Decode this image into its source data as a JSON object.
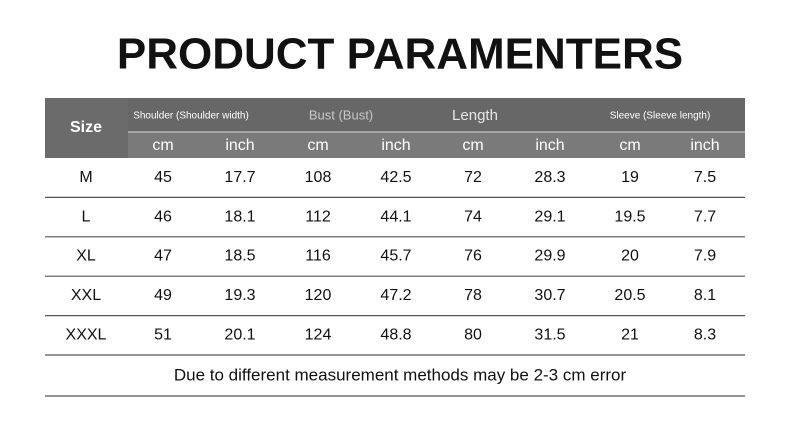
{
  "title": "PRODUCT PARAMENTERS",
  "table": {
    "size_header": "Size",
    "groups": [
      "Shoulder (Shoulder width)",
      "Bust (Bust)",
      "Length",
      "Sleeve (Sleeve length)"
    ],
    "units": [
      "cm",
      "inch",
      "cm",
      "inch",
      "cm",
      "inch",
      "cm",
      "inch"
    ],
    "rows": [
      [
        "M",
        "45",
        "17.7",
        "108",
        "42.5",
        "72",
        "28.3",
        "19",
        "7.5"
      ],
      [
        "L",
        "46",
        "18.1",
        "112",
        "44.1",
        "74",
        "29.1",
        "19.5",
        "7.7"
      ],
      [
        "XL",
        "47",
        "18.5",
        "116",
        "45.7",
        "76",
        "29.9",
        "20",
        "7.9"
      ],
      [
        "XXL",
        "49",
        "19.3",
        "120",
        "47.2",
        "78",
        "30.7",
        "20.5",
        "8.1"
      ],
      [
        "XXXL",
        "51",
        "20.1",
        "124",
        "48.8",
        "80",
        "31.5",
        "21",
        "8.3"
      ]
    ]
  },
  "note": "Due to different measurement methods may be 2-3 cm error"
}
